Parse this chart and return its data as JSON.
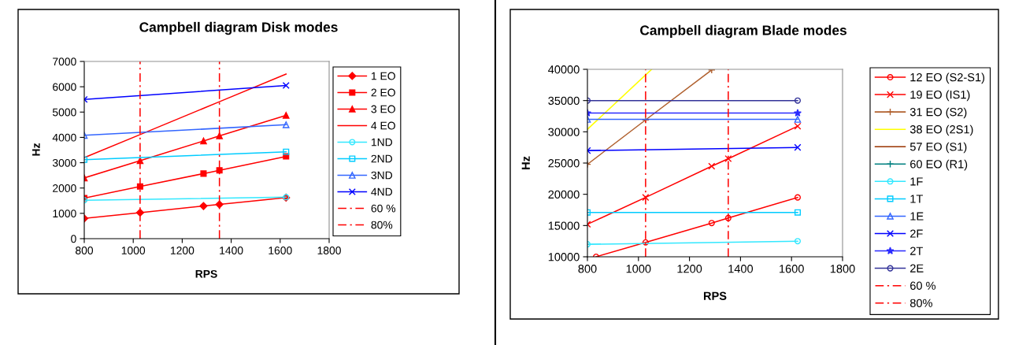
{
  "chart_data": [
    {
      "type": "line",
      "title": "Campbell diagram Disk modes",
      "xlabel": "RPS",
      "ylabel": "Hz",
      "xlim": [
        800,
        1800
      ],
      "xticks": [
        800,
        1000,
        1200,
        1400,
        1600,
        1800
      ],
      "ylim": [
        0,
        7000
      ],
      "yticks": [
        0,
        1000,
        2000,
        3000,
        4000,
        5000,
        6000,
        7000
      ],
      "grid": false,
      "legend": "right",
      "line_style": "solid",
      "series": [
        {
          "name": "1 EO",
          "color": "#ff0000",
          "marker": "diamond",
          "x": [
            800,
            1028,
            1287,
            1352,
            1624
          ],
          "values": [
            800,
            1030,
            1290,
            1350,
            1620
          ]
        },
        {
          "name": "2 EO",
          "color": "#ff0000",
          "marker": "square",
          "x": [
            800,
            1028,
            1287,
            1352,
            1624
          ],
          "values": [
            1600,
            2060,
            2570,
            2700,
            3250
          ]
        },
        {
          "name": "3 EO",
          "color": "#ff0000",
          "marker": "triangle",
          "x": [
            800,
            1028,
            1287,
            1352,
            1624
          ],
          "values": [
            2400,
            3080,
            3860,
            4060,
            4870
          ]
        },
        {
          "name": "4 EO",
          "color": "#ff0000",
          "marker": "none",
          "x": [
            800,
            1028,
            1287,
            1352,
            1624
          ],
          "values": [
            3200,
            4110,
            5150,
            5410,
            6500
          ]
        },
        {
          "name": "1ND",
          "color": "#33e8ff",
          "marker": "circle-open",
          "x": [
            800,
            1624
          ],
          "values": [
            1520,
            1640
          ]
        },
        {
          "name": "2ND",
          "color": "#00ccff",
          "marker": "square-open",
          "x": [
            800,
            1624
          ],
          "values": [
            3120,
            3430
          ]
        },
        {
          "name": "3ND",
          "color": "#3366ff",
          "marker": "triangle-open",
          "x": [
            800,
            1624
          ],
          "values": [
            4080,
            4500
          ]
        },
        {
          "name": "4ND",
          "color": "#0000ff",
          "marker": "cross",
          "x": [
            800,
            1624
          ],
          "values": [
            5500,
            6050
          ]
        },
        {
          "name": "60 %",
          "color": "#ff0000",
          "marker": "none",
          "line_style": "dashdot",
          "x": [
            1028,
            1028
          ],
          "values": [
            0,
            7000
          ]
        },
        {
          "name": "80%",
          "color": "#ff0000",
          "marker": "none",
          "line_style": "dashdot",
          "x": [
            1352,
            1352
          ],
          "values": [
            0,
            7000
          ]
        }
      ]
    },
    {
      "type": "line",
      "title": "Campbell diagram Blade modes",
      "xlabel": "RPS",
      "ylabel": "Hz",
      "xlim": [
        800,
        1800
      ],
      "xticks": [
        800,
        1000,
        1200,
        1400,
        1600,
        1800
      ],
      "ylim": [
        10000,
        40000
      ],
      "yticks": [
        10000,
        15000,
        20000,
        25000,
        30000,
        35000,
        40000
      ],
      "grid": false,
      "legend": "right",
      "line_style": "solid",
      "series": [
        {
          "name": "12 EO (S2-S1)",
          "color": "#ff0000",
          "marker": "circle-open",
          "x": [
            834,
            1028,
            1287,
            1352,
            1624
          ],
          "values": [
            10000,
            12300,
            15400,
            16200,
            19500
          ]
        },
        {
          "name": "19 EO (IS1)",
          "color": "#ff0000",
          "marker": "cross",
          "x": [
            800,
            1028,
            1287,
            1352,
            1624
          ],
          "values": [
            15200,
            19500,
            24500,
            25700,
            30900
          ]
        },
        {
          "name": "31 EO (S2)",
          "color": "#b0602e",
          "marker": "plus",
          "x": [
            800,
            1028,
            1287
          ],
          "values": [
            24800,
            31900,
            39900
          ]
        },
        {
          "name": "38 EO (2S1)",
          "color": "#ffff00",
          "marker": "none",
          "x": [
            800,
            1028,
            1052
          ],
          "values": [
            30400,
            39100,
            40000
          ]
        },
        {
          "name": "57 EO (S1)",
          "color": "#993300",
          "marker": "none"
        },
        {
          "name": "60 EO (R1)",
          "color": "#008080",
          "marker": "plus"
        },
        {
          "name": "1F",
          "color": "#33e8ff",
          "marker": "circle-open",
          "x": [
            800,
            1624
          ],
          "values": [
            12000,
            12500
          ]
        },
        {
          "name": "1T",
          "color": "#00ccff",
          "marker": "square-open",
          "x": [
            800,
            1624
          ],
          "values": [
            17100,
            17100
          ]
        },
        {
          "name": "1E",
          "color": "#3366ff",
          "marker": "triangle-open",
          "x": [
            800,
            1624
          ],
          "values": [
            32000,
            32000
          ]
        },
        {
          "name": "2F",
          "color": "#0000ff",
          "marker": "cross",
          "x": [
            800,
            1624
          ],
          "values": [
            27000,
            27500
          ]
        },
        {
          "name": "2T",
          "color": "#2a2aff",
          "marker": "star",
          "x": [
            800,
            1624
          ],
          "values": [
            33000,
            33000
          ]
        },
        {
          "name": "2E",
          "color": "#333399",
          "marker": "circle-open",
          "x": [
            800,
            1624
          ],
          "values": [
            35000,
            35000
          ]
        },
        {
          "name": "60 %",
          "color": "#ff0000",
          "marker": "none",
          "line_style": "dashdot",
          "x": [
            1028,
            1028
          ],
          "values": [
            10000,
            40000
          ]
        },
        {
          "name": "80%",
          "color": "#ff0000",
          "marker": "none",
          "line_style": "dashdot",
          "x": [
            1352,
            1352
          ],
          "values": [
            10000,
            40000
          ]
        }
      ]
    }
  ]
}
